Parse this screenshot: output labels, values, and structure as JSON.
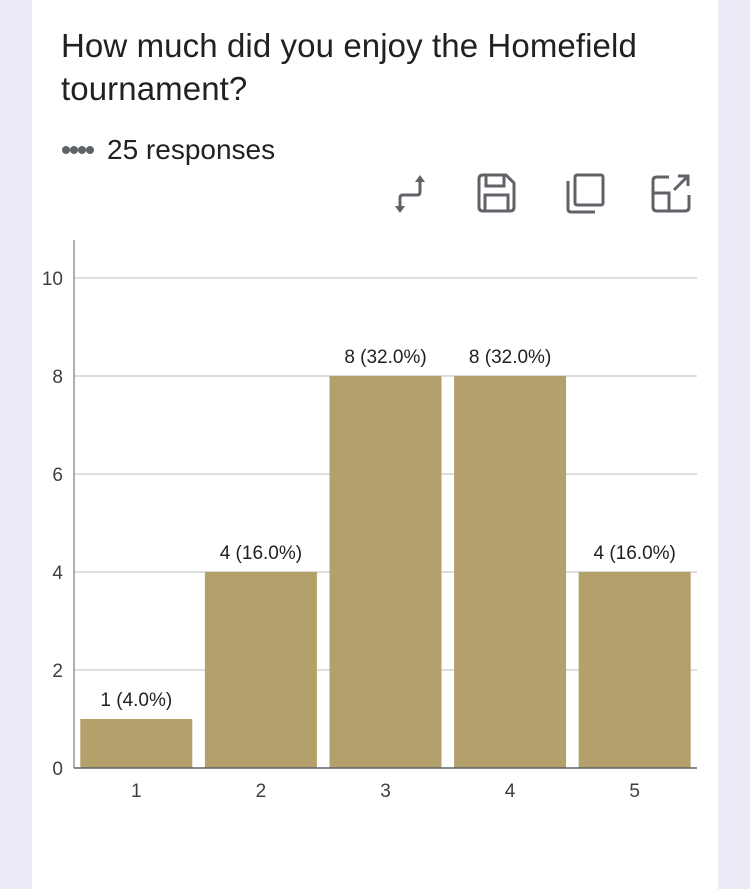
{
  "title": "How much did you enjoy the Homefield tournament?",
  "responses_text": "25 responses",
  "toolbar": {
    "icons": [
      "swap-axes-icon",
      "save-icon",
      "copy-icon",
      "expand-icon"
    ]
  },
  "colors": {
    "bar": "#b3a06a",
    "grid": "#bdbdbd",
    "axis": "#5f6368",
    "background": "#ede9f7"
  },
  "chart_data": {
    "type": "bar",
    "categories": [
      "1",
      "2",
      "3",
      "4",
      "5"
    ],
    "values": [
      1,
      4,
      8,
      8,
      4
    ],
    "data_labels": [
      "1 (4.0%)",
      "4 (16.0%)",
      "8 (32.0%)",
      "8 (32.0%)",
      "4 (16.0%)"
    ],
    "yticks": [
      0,
      2,
      4,
      6,
      8,
      10
    ],
    "ylim": [
      0,
      10
    ],
    "grid": true,
    "xlabel": "",
    "ylabel": ""
  }
}
